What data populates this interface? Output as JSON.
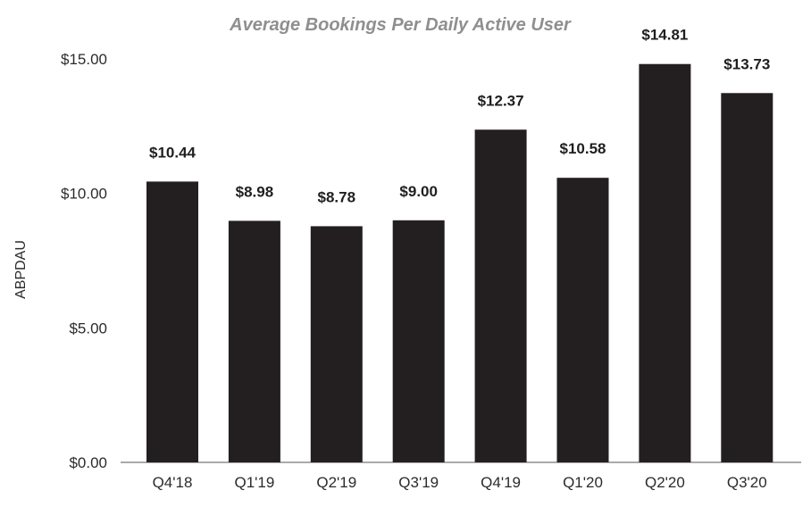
{
  "chart_data": {
    "type": "bar",
    "title": "Average Bookings Per Daily Active User",
    "xlabel": "",
    "ylabel": "ABPDAU",
    "ylim": [
      0,
      15
    ],
    "yticks": [
      0,
      5,
      10,
      15
    ],
    "ytick_labels": [
      "$0.00",
      "$5.00",
      "$10.00",
      "$15.00"
    ],
    "categories": [
      "Q4'18",
      "Q1'19",
      "Q2'19",
      "Q3'19",
      "Q4'19",
      "Q1'20",
      "Q2'20",
      "Q3'20"
    ],
    "values": [
      10.44,
      8.98,
      8.78,
      9.0,
      12.37,
      10.58,
      14.81,
      13.73
    ],
    "data_labels": [
      "$10.44",
      "$8.98",
      "$8.78",
      "$9.00",
      "$12.37",
      "$10.58",
      "$14.81",
      "$13.73"
    ],
    "bar_color": "#231f20",
    "grid": false
  }
}
